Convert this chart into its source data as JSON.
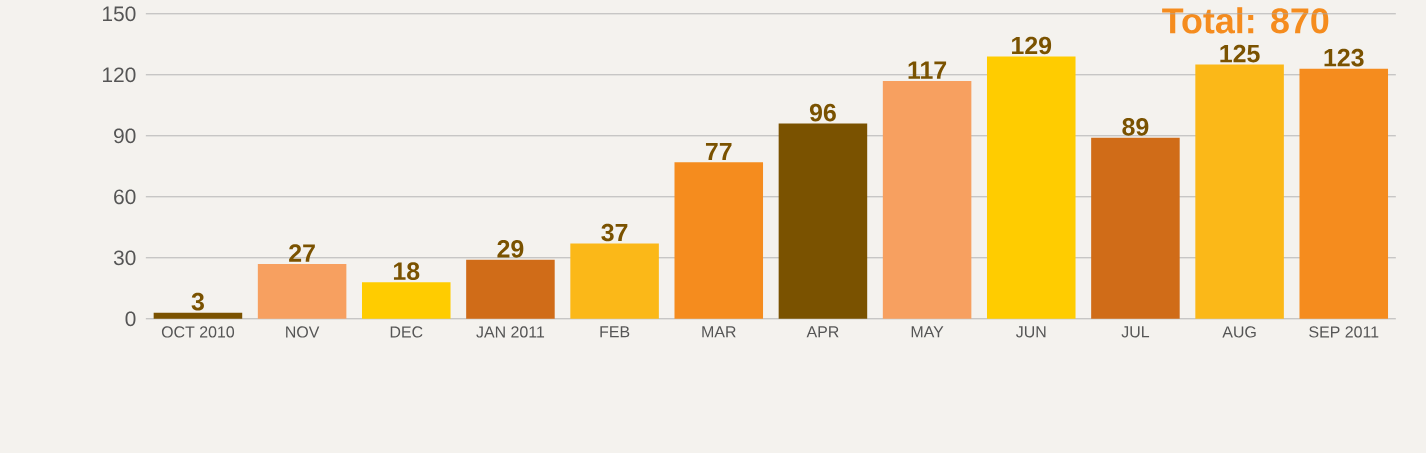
{
  "chart_data": {
    "type": "bar",
    "title": "Total: 870",
    "categories": [
      "OCT 2010",
      "NOV",
      "DEC",
      "JAN 2011",
      "FEB",
      "MAR",
      "APR",
      "MAY",
      "JUN",
      "JUL",
      "AUG",
      "SEP 2011"
    ],
    "values": [
      3,
      27,
      18,
      29,
      37,
      77,
      96,
      117,
      129,
      89,
      125,
      123
    ],
    "colors": [
      "#7a5200",
      "#f7a060",
      "#ffcc00",
      "#d06c18",
      "#fbb818",
      "#f58c1e",
      "#7a5200",
      "#f7a060",
      "#ffcc00",
      "#d06c18",
      "#fbb818",
      "#f58c1e"
    ],
    "ylim": [
      0,
      150
    ],
    "yticks": [
      0,
      30,
      60,
      90,
      120,
      150
    ],
    "grid": "y",
    "data_labels": true
  }
}
